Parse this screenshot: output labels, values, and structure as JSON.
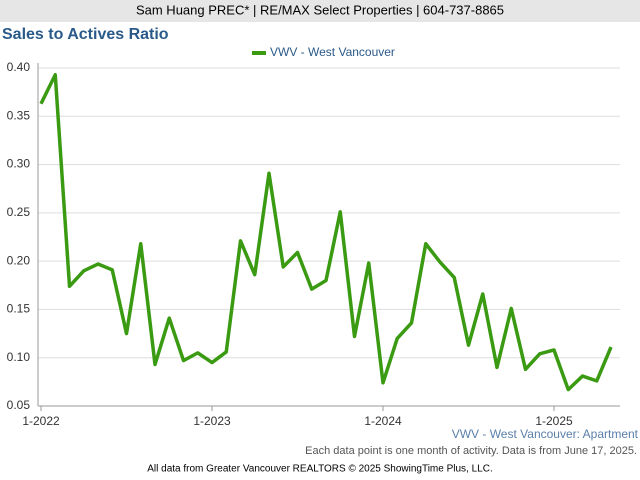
{
  "header": "Sam Huang PREC* | RE/MAX Select Properties | 604-737-8865",
  "chart_data": {
    "type": "line",
    "title": "Sales to Actives Ratio",
    "categories": [
      "1-2022",
      null,
      null,
      null,
      null,
      null,
      null,
      null,
      null,
      null,
      null,
      null,
      "1-2023",
      null,
      null,
      null,
      null,
      null,
      null,
      null,
      null,
      null,
      null,
      null,
      "1-2024",
      null,
      null,
      null,
      null,
      null,
      null,
      null,
      null,
      null,
      null,
      null,
      "1-2025",
      null,
      null,
      null,
      null
    ],
    "series": [
      {
        "name": "VWV - West Vancouver",
        "color": "#3a9a12",
        "values": [
          0.363,
          0.393,
          0.174,
          0.19,
          0.197,
          0.191,
          0.125,
          0.218,
          0.093,
          0.141,
          0.097,
          0.105,
          0.095,
          0.106,
          0.221,
          0.186,
          0.291,
          0.194,
          0.209,
          0.171,
          0.18,
          0.251,
          0.122,
          0.198,
          0.074,
          0.12,
          0.136,
          0.218,
          0.199,
          0.183,
          0.113,
          0.166,
          0.09,
          0.151,
          0.088,
          0.104,
          0.108,
          0.067,
          0.081,
          0.076,
          0.111
        ]
      }
    ],
    "ylim": [
      0.05,
      0.4
    ],
    "yticks": [
      0.05,
      {
        "value": 0.1,
        "label": "0.10"
      },
      0.15,
      {
        "value": 0.2,
        "label": "0.20"
      },
      0.25,
      {
        "value": 0.3,
        "label": "0.30"
      },
      0.35,
      {
        "value": 0.4,
        "label": "0.40"
      }
    ],
    "grid": true,
    "legend": "top",
    "annotations": [
      "VWV - West Vancouver: Apartment",
      "Each data point is one month of activity. Data is from June 17, 2025.",
      "All data from Greater Vancouver REALTORS © 2025 ShowingTime Plus, LLC."
    ]
  }
}
